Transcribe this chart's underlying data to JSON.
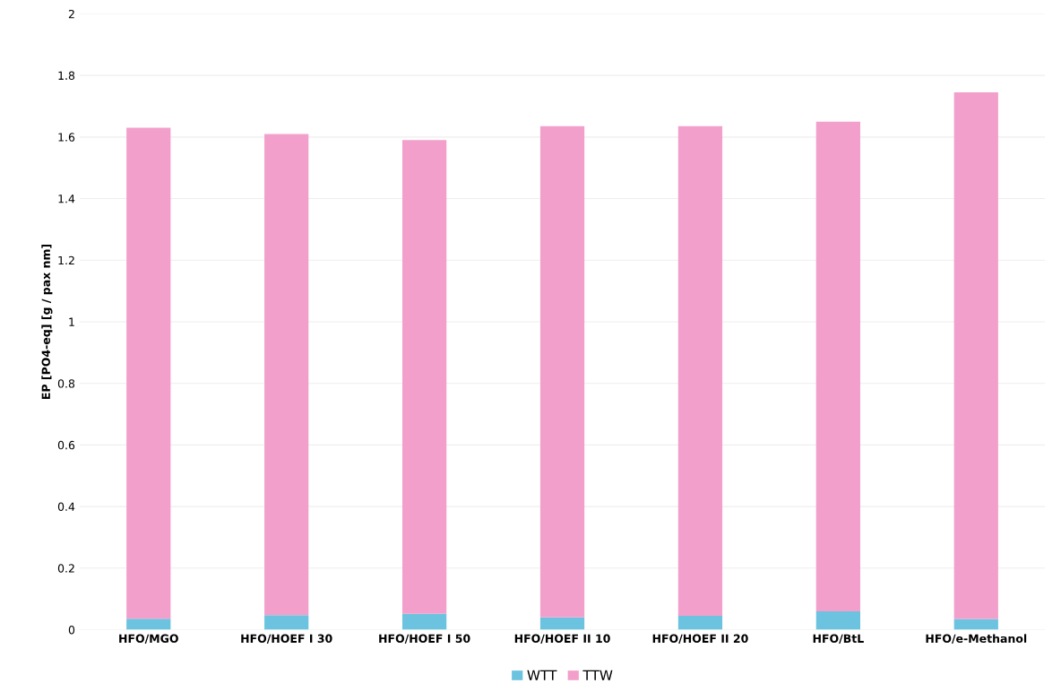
{
  "chart_data": {
    "type": "bar",
    "stacked": true,
    "ylabel": "EP [PO4-eq] [g / pax nm]",
    "categories": [
      "HFO/MGO",
      "HFO/HOEF I 30",
      "HFO/HOEF I 50",
      "HFO/HOEF II 10",
      "HFO/HOEF II 20",
      "HFO/BtL",
      "HFO/e-Methanol"
    ],
    "series": [
      {
        "name": "WTT",
        "color": "#6cc3df",
        "values": [
          0.036,
          0.047,
          0.052,
          0.04,
          0.045,
          0.06,
          0.035
        ]
      },
      {
        "name": "TTW",
        "color": "#f2a0cb",
        "values": [
          1.594,
          1.563,
          1.538,
          1.595,
          1.59,
          1.59,
          1.71
        ]
      }
    ],
    "ylim": [
      0,
      2
    ],
    "yticks": [
      0,
      0.2,
      0.4,
      0.6,
      0.8,
      1,
      1.2,
      1.4,
      1.6,
      1.8,
      2
    ],
    "grid": "y",
    "legend": "bottom"
  }
}
